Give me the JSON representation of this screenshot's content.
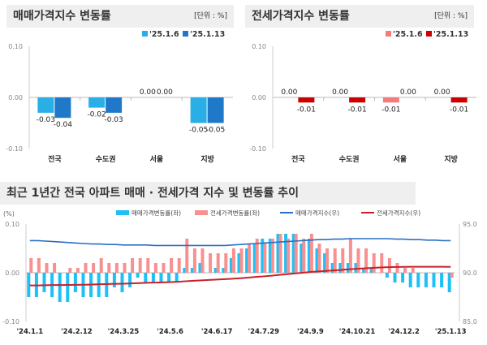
{
  "chart_data": [
    {
      "type": "bar",
      "title": "매매가격지수 변동률",
      "unit": "[단위 : %]",
      "categories": [
        "전국",
        "수도권",
        "서울",
        "지방"
      ],
      "series": [
        {
          "name": "'25.1.6",
          "values": [
            -0.03,
            -0.02,
            0.0,
            -0.05
          ],
          "color": "#29aee6"
        },
        {
          "name": "'25.1.13",
          "values": [
            -0.04,
            -0.03,
            0.0,
            -0.05
          ],
          "color": "#1f78c8"
        }
      ],
      "ylim": [
        -0.1,
        0.1
      ],
      "yticks": [
        "-0.10",
        "0.00",
        "0.10"
      ]
    },
    {
      "type": "bar",
      "title": "전세가격지수 변동률",
      "unit": "[단위 : %]",
      "categories": [
        "전국",
        "수도권",
        "서울",
        "지방"
      ],
      "series": [
        {
          "name": "'25.1.6",
          "values": [
            0.0,
            0.0,
            -0.01,
            0.0
          ],
          "color": "#f77a7a"
        },
        {
          "name": "'25.1.13",
          "values": [
            -0.01,
            -0.01,
            0.0,
            -0.01
          ],
          "color": "#cc0000"
        }
      ],
      "ylim": [
        -0.1,
        0.1
      ],
      "yticks": [
        "-0.10",
        "0.00",
        "0.10"
      ]
    },
    {
      "type": "bar+line",
      "title": "최근 1년간 전국 아파트 매매 · 전세가격 지수 및 변동률 추이",
      "ylabel": "(%)",
      "ylim": [
        -0.1,
        0.1
      ],
      "yticks": [
        "-0.10",
        "0.00",
        "0.10"
      ],
      "y2lim": [
        85.0,
        95.0
      ],
      "y2ticks": [
        "85.0",
        "90.0",
        "95.0"
      ],
      "xticks": [
        "'24.1.1",
        "'24.2.12",
        "'24.3.25",
        "'24.5.6",
        "'24.6.17",
        "'24.7.29",
        "'24.9.9",
        "'24.10.21",
        "'24.12.2",
        "'25.1.13"
      ],
      "series": [
        {
          "name": "매매가격변동률(좌)",
          "type": "bar",
          "color": "#1ec0f5",
          "values": [
            -0.05,
            -0.05,
            -0.04,
            -0.05,
            -0.06,
            -0.06,
            -0.04,
            -0.05,
            -0.05,
            -0.05,
            -0.05,
            -0.03,
            -0.04,
            -0.03,
            -0.01,
            -0.02,
            -0.02,
            -0.02,
            -0.02,
            -0.02,
            0.01,
            0.01,
            0.02,
            0.0,
            0.01,
            0.01,
            0.03,
            0.04,
            0.05,
            0.06,
            0.07,
            0.07,
            0.08,
            0.08,
            0.08,
            0.06,
            0.07,
            0.05,
            0.04,
            0.02,
            0.02,
            0.02,
            0.02,
            0.01,
            0.01,
            0.0,
            -0.01,
            -0.02,
            -0.02,
            -0.03,
            -0.03,
            -0.03,
            -0.03,
            -0.03,
            -0.04
          ]
        },
        {
          "name": "전세가격변동률(좌)",
          "type": "bar",
          "color": "#f99090",
          "values": [
            0.03,
            0.03,
            0.02,
            0.02,
            0.0,
            0.01,
            0.01,
            0.02,
            0.02,
            0.03,
            0.02,
            0.02,
            0.02,
            0.03,
            0.03,
            0.03,
            0.02,
            0.02,
            0.03,
            0.03,
            0.07,
            0.05,
            0.05,
            0.04,
            0.04,
            0.04,
            0.05,
            0.05,
            0.06,
            0.07,
            0.06,
            0.07,
            0.08,
            0.07,
            0.08,
            0.07,
            0.08,
            0.06,
            0.05,
            0.05,
            0.05,
            0.07,
            0.05,
            0.05,
            0.04,
            0.04,
            0.03,
            0.02,
            0.01,
            0.01,
            0.0,
            0.0,
            0.0,
            0.0,
            -0.01
          ]
        },
        {
          "name": "매매가격지수(우)",
          "type": "line",
          "color": "#2a6fc4",
          "values": [
            93.3,
            93.3,
            93.25,
            93.2,
            93.15,
            93.1,
            93.05,
            93.0,
            92.95,
            92.95,
            92.9,
            92.9,
            92.85,
            92.85,
            92.85,
            92.85,
            92.8,
            92.8,
            92.8,
            92.8,
            92.8,
            92.8,
            92.8,
            92.8,
            92.8,
            92.8,
            92.85,
            92.9,
            92.95,
            93.0,
            93.05,
            93.1,
            93.15,
            93.2,
            93.25,
            93.3,
            93.35,
            93.4,
            93.4,
            93.45,
            93.45,
            93.5,
            93.5,
            93.5,
            93.5,
            93.5,
            93.5,
            93.45,
            93.45,
            93.4,
            93.4,
            93.35,
            93.35,
            93.3,
            93.3
          ]
        },
        {
          "name": "전세가격지수(우)",
          "type": "line",
          "color": "#c8202a",
          "values": [
            88.7,
            88.7,
            88.72,
            88.74,
            88.74,
            88.75,
            88.76,
            88.77,
            88.79,
            88.82,
            88.84,
            88.86,
            88.88,
            88.91,
            88.94,
            88.97,
            88.99,
            89.01,
            89.04,
            89.07,
            89.13,
            89.18,
            89.22,
            89.26,
            89.3,
            89.34,
            89.39,
            89.44,
            89.5,
            89.57,
            89.63,
            89.7,
            89.78,
            89.85,
            89.93,
            90.0,
            90.08,
            90.14,
            90.19,
            90.24,
            90.29,
            90.36,
            90.41,
            90.46,
            90.5,
            90.54,
            90.57,
            90.59,
            90.6,
            90.61,
            90.61,
            90.61,
            90.61,
            90.61,
            90.6
          ]
        }
      ]
    }
  ]
}
